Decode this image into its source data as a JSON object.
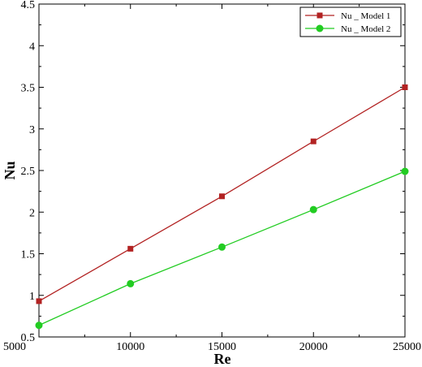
{
  "chart_data": {
    "type": "line",
    "title": "",
    "xlabel": "Re",
    "ylabel": "Nu",
    "xlim": [
      5000,
      25000
    ],
    "ylim": [
      0.5,
      4.5
    ],
    "xticks": [
      5000,
      10000,
      15000,
      20000,
      25000
    ],
    "yticks": [
      0.5,
      1,
      1.5,
      2,
      2.5,
      3,
      3.5,
      4,
      4.5
    ],
    "grid": false,
    "legend_position": "top-right",
    "series": [
      {
        "name": "Nu _ Model 1",
        "color": "#b22222",
        "marker": "square",
        "x": [
          5000,
          10000,
          15000,
          20000,
          25000
        ],
        "y": [
          0.93,
          1.56,
          2.19,
          2.85,
          3.5
        ]
      },
      {
        "name": "Nu _ Model 2",
        "color": "#22cc22",
        "marker": "circle",
        "x": [
          5000,
          10000,
          15000,
          20000,
          25000
        ],
        "y": [
          0.64,
          1.14,
          1.58,
          2.03,
          2.49
        ]
      }
    ]
  }
}
